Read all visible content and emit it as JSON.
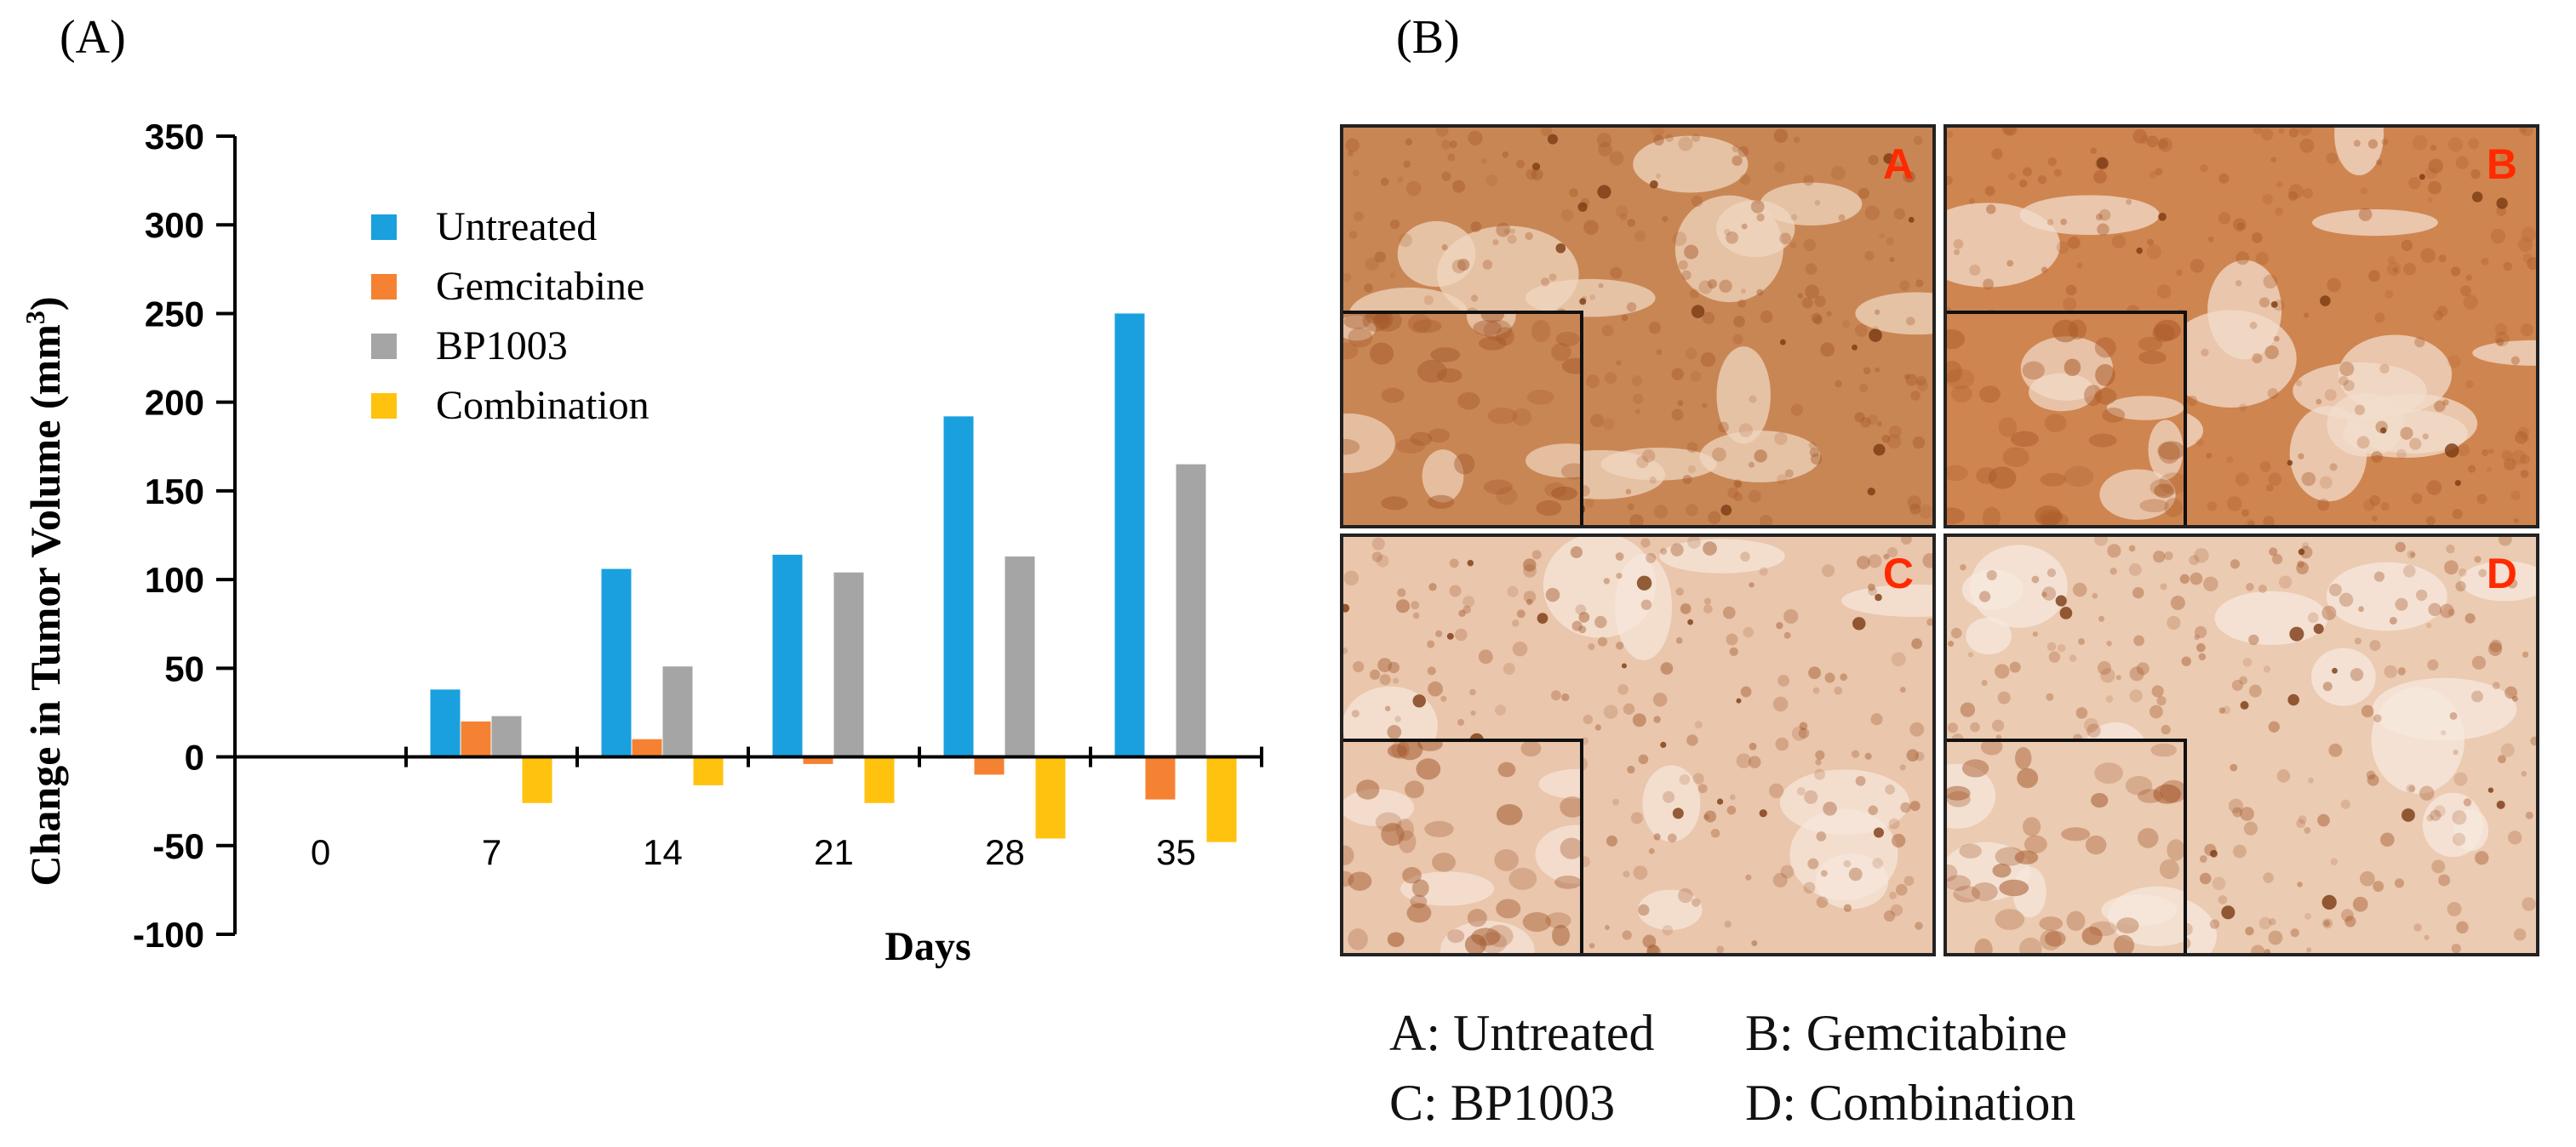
{
  "panel_labels": {
    "a": "(A)",
    "b": "(B)"
  },
  "chart_data": {
    "type": "bar",
    "title": "",
    "xlabel": "Days",
    "ylabel_main": "Change in Tumor Volume (mm",
    "ylabel_sup": "3",
    "ylabel_end": ")",
    "ylim": [
      -100,
      350
    ],
    "yticks": [
      -100,
      -50,
      0,
      50,
      100,
      150,
      200,
      250,
      300,
      350
    ],
    "categories": [
      "0",
      "7",
      "14",
      "21",
      "28",
      "35"
    ],
    "series": [
      {
        "name": "Untreated",
        "color": "#1aa0de",
        "values": [
          0,
          38,
          106,
          114,
          192,
          250
        ]
      },
      {
        "name": "Gemcitabine",
        "color": "#f58232",
        "values": [
          0,
          20,
          10,
          -4,
          -10,
          -24
        ]
      },
      {
        "name": "BP1003",
        "color": "#a5a5a5",
        "values": [
          0,
          23,
          51,
          104,
          113,
          165
        ]
      },
      {
        "name": "Combination",
        "color": "#ffc20e",
        "values": [
          0,
          -26,
          -16,
          -26,
          -46,
          -48
        ]
      }
    ],
    "legend_position": "top-left",
    "grid": false
  },
  "micrographs": [
    {
      "letter": "A",
      "tissue": "#c98655",
      "accent": "#a4582a",
      "light": "#efd6bf"
    },
    {
      "letter": "B",
      "tissue": "#cf8550",
      "accent": "#a95a28",
      "light": "#f2dccb"
    },
    {
      "letter": "C",
      "tissue": "#e9c6ac",
      "accent": "#a0552a",
      "light": "#f6e6da"
    },
    {
      "letter": "D",
      "tissue": "#ebcbb2",
      "accent": "#a4582c",
      "light": "#f7e8dd"
    }
  ],
  "caption": {
    "a": "A: Untreated",
    "b": "B: Gemcitabine",
    "c": "C: BP1003",
    "d": "D: Combination"
  }
}
